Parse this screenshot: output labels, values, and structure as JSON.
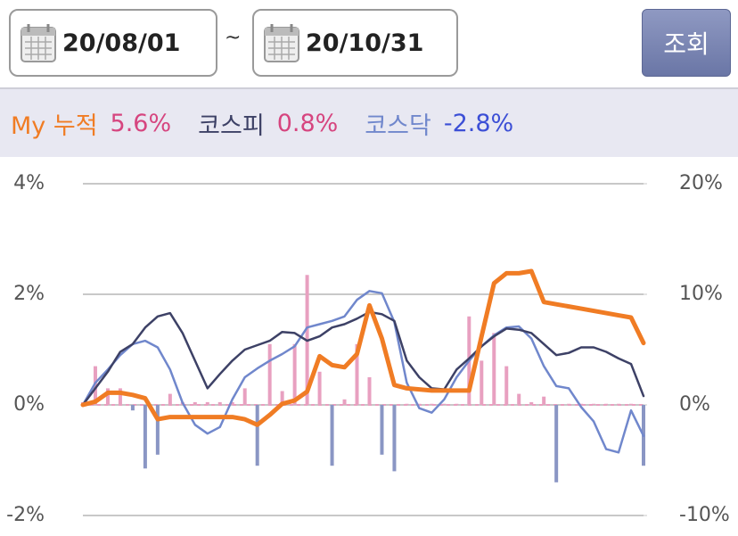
{
  "header": {
    "start_date": "20/08/01",
    "separator": "~",
    "end_date": "20/10/31",
    "button": "조회"
  },
  "chart_data": {
    "type": "combo",
    "ylim": [
      -2,
      4
    ],
    "yticks": [
      {
        "value": -2,
        "label": "-2%"
      },
      {
        "value": 0,
        "label": "0%"
      },
      {
        "value": 2,
        "label": "2%"
      },
      {
        "value": 4,
        "label": "4%"
      }
    ],
    "y2lim": [
      -10,
      20
    ],
    "y2ticks": [
      {
        "value": -10,
        "label": "-10%"
      },
      {
        "value": 0,
        "label": "0%"
      },
      {
        "value": 10,
        "label": "10%"
      },
      {
        "value": 20,
        "label": "20%"
      }
    ],
    "grid": true,
    "bars": {
      "positive_color": "#e8a0c0",
      "negative_color": "#8a96c4",
      "values": [
        0.05,
        0.7,
        0.3,
        0.3,
        -0.1,
        -1.15,
        -0.9,
        0.2,
        0.05,
        0.05,
        0.05,
        0.05,
        0.05,
        0.3,
        -1.1,
        1.1,
        0.25,
        1.1,
        2.35,
        0.6,
        -1.1,
        0.1,
        1.1,
        0.5,
        -0.9,
        -1.2,
        0.02,
        0.02,
        0.02,
        0.02,
        0.02,
        1.6,
        0.8,
        1.3,
        0.7,
        0.2,
        0.05,
        0.15,
        -1.4,
        0.02,
        0.02,
        0.02,
        0.02,
        0.02,
        0.02,
        -1.1
      ]
    },
    "series": [
      {
        "name": "My 누적",
        "color": "#f07c24",
        "axis": "y2",
        "total_label": "5.6%",
        "values": [
          0,
          0.3,
          1.1,
          1.1,
          0.9,
          0.6,
          -1.3,
          -1.1,
          -1.1,
          -1.1,
          -1.1,
          -1.1,
          -1.1,
          -1.3,
          -1.8,
          -0.9,
          0.1,
          0.4,
          1.2,
          4.4,
          3.6,
          3.4,
          4.6,
          9.0,
          6.0,
          1.8,
          1.5,
          1.4,
          1.3,
          1.3,
          1.3,
          1.3,
          6.2,
          11.0,
          11.9,
          11.9,
          12.1,
          9.3,
          9.1,
          8.9,
          8.7,
          8.5,
          8.3,
          8.1,
          7.9,
          5.6
        ]
      },
      {
        "name": "코스피",
        "color": "#3d4166",
        "axis": "y2",
        "total_label": "0.8%",
        "values": [
          0,
          1.5,
          3.0,
          4.8,
          5.5,
          7.0,
          8.0,
          8.3,
          6.5,
          4.0,
          1.5,
          2.8,
          4.0,
          5.0,
          5.4,
          5.8,
          6.6,
          6.5,
          5.8,
          6.2,
          7.0,
          7.3,
          7.8,
          8.4,
          8.2,
          7.6,
          4.0,
          2.5,
          1.5,
          1.4,
          3.2,
          4.2,
          5.3,
          6.2,
          6.9,
          6.8,
          6.5,
          5.5,
          4.5,
          4.7,
          5.2,
          5.2,
          4.8,
          4.2,
          3.7,
          0.8
        ]
      },
      {
        "name": "코스닥",
        "color": "#7087cc",
        "axis": "y2",
        "total_label": "-2.8%",
        "values": [
          0,
          2.0,
          3.2,
          4.5,
          5.5,
          5.8,
          5.2,
          3.2,
          0.2,
          -1.8,
          -2.6,
          -2.0,
          0.5,
          2.5,
          3.3,
          4.0,
          4.6,
          5.3,
          7.0,
          7.3,
          7.6,
          8.0,
          9.5,
          10.3,
          10.1,
          7.5,
          2.0,
          -0.3,
          -0.7,
          0.5,
          2.5,
          4.0,
          5.3,
          6.3,
          7.0,
          7.1,
          6.0,
          3.5,
          1.7,
          1.5,
          -0.2,
          -1.5,
          -4.0,
          -4.3,
          -0.5,
          -2.8
        ]
      }
    ]
  }
}
